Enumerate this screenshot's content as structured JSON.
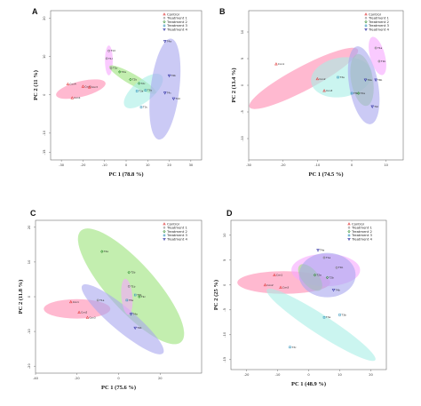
{
  "colors": {
    "control": "#e03a3a",
    "treatment1": "#7a7a7a",
    "treatment2": "#2e8b2e",
    "treatment3": "#2a8fb8",
    "treatment4": "#2a2aa0",
    "ellipse_control": "#ff8ab0",
    "ellipse_t1": "#f6a6ff",
    "ellipse_t2": "#9be27a",
    "ellipse_t3": "#a8efe6",
    "ellipse_t4": "#a9a6ef"
  },
  "legend": [
    "Control",
    "Treatment 1",
    "Treatment 2",
    "Treatment 3",
    "Treatment 4"
  ],
  "chart_data": [
    {
      "panel": "A",
      "type": "scatter",
      "xlabel": "PC 1 (78.8 %)",
      "ylabel": "PC 2 (11 %)",
      "xlim": [
        -35,
        35
      ],
      "ylim": [
        -17,
        22
      ],
      "xticks": [
        -30,
        -20,
        -10,
        0,
        10,
        20,
        30
      ],
      "yticks": [
        20,
        10,
        0,
        -10,
        -15
      ],
      "legend_position": "top-right",
      "ellipses": [
        {
          "group": "control",
          "cx": -21,
          "cy": 1.5,
          "rx": 8.5,
          "ry": 2.6,
          "angle": 14
        },
        {
          "group": "t1",
          "cx": -8,
          "cy": 9,
          "rx": 5,
          "ry": 1.3,
          "angle": 90
        },
        {
          "group": "t2",
          "cx": 3,
          "cy": 4,
          "rx": 9,
          "ry": 1.8,
          "angle": -30
        },
        {
          "group": "t3",
          "cx": 8,
          "cy": 1,
          "rx": 8,
          "ry": 3.5,
          "angle": 40
        },
        {
          "group": "t4",
          "cx": 18,
          "cy": 1.5,
          "rx": 17,
          "ry": 4.8,
          "angle": 83
        }
      ],
      "points": [
        {
          "group": "control",
          "x": -27,
          "y": 2.8,
          "label": "Con4"
        },
        {
          "group": "control",
          "x": -25,
          "y": -0.8,
          "label": "Con1"
        },
        {
          "group": "control",
          "x": -20,
          "y": 2.2,
          "label": "Con2"
        },
        {
          "group": "control",
          "x": -17,
          "y": 2.0,
          "label": "Con3"
        },
        {
          "group": "t1",
          "x": -8,
          "y": 11.5,
          "label": "T1d"
        },
        {
          "group": "t1",
          "x": -9,
          "y": 9.5,
          "label": "T1c"
        },
        {
          "group": "t1",
          "x": -7,
          "y": 7,
          "label": "T1b"
        },
        {
          "group": "t2",
          "x": -3,
          "y": 6,
          "label": "T2a"
        },
        {
          "group": "t2",
          "x": 2,
          "y": 4,
          "label": "T2b"
        },
        {
          "group": "t2",
          "x": 6,
          "y": 3,
          "label": "T2c"
        },
        {
          "group": "t3",
          "x": 5,
          "y": 1,
          "label": "T3a"
        },
        {
          "group": "t3",
          "x": 9,
          "y": 1.2,
          "label": "T3b"
        },
        {
          "group": "t3",
          "x": 7,
          "y": -3.2,
          "label": "T3c"
        },
        {
          "group": "t4",
          "x": 18,
          "y": 14,
          "label": "T4a"
        },
        {
          "group": "t4",
          "x": 20,
          "y": 5,
          "label": "T4b"
        },
        {
          "group": "t4",
          "x": 18,
          "y": 0.5,
          "label": "T4c"
        },
        {
          "group": "t4",
          "x": 22,
          "y": -1,
          "label": "T4d"
        }
      ]
    },
    {
      "panel": "B",
      "type": "scatter",
      "xlabel": "PC 1 (74.5 %)",
      "ylabel": "PC 2 (13.4 %)",
      "xlim": [
        -30,
        15
      ],
      "ylim": [
        -14,
        14
      ],
      "xticks": [
        -30,
        -20,
        -10,
        0,
        10
      ],
      "yticks": [
        10,
        5,
        0,
        -5,
        -10
      ],
      "legend_position": "top-right",
      "ellipses": [
        {
          "group": "control",
          "cx": -14,
          "cy": 1.3,
          "rx": 14,
          "ry": 2.7,
          "angle": 28
        },
        {
          "group": "t3",
          "cx": -3,
          "cy": 1.5,
          "rx": 7,
          "ry": 4.5,
          "angle": 10
        },
        {
          "group": "t2",
          "cx": 3,
          "cy": 1,
          "rx": 6,
          "ry": 2.5,
          "angle": 100
        },
        {
          "group": "t4",
          "cx": 3.5,
          "cy": 0,
          "rx": 9,
          "ry": 3.3,
          "angle": 100
        },
        {
          "group": "t1",
          "cx": 7.5,
          "cy": 5.5,
          "rx": 4.5,
          "ry": 1.7,
          "angle": 105
        }
      ],
      "points": [
        {
          "group": "control",
          "x": -22,
          "y": 4,
          "label": "Con1"
        },
        {
          "group": "control",
          "x": -10,
          "y": 1.2,
          "label": "Con2"
        },
        {
          "group": "control",
          "x": -8,
          "y": -1,
          "label": "Con3"
        },
        {
          "group": "t3",
          "x": -4,
          "y": 1.5,
          "label": "T3a"
        },
        {
          "group": "t3",
          "x": 0,
          "y": -1.5,
          "label": "T3b"
        },
        {
          "group": "t2",
          "x": 2,
          "y": -1.5,
          "label": "T2a"
        },
        {
          "group": "t4",
          "x": 4,
          "y": 1,
          "label": "T4a"
        },
        {
          "group": "t4",
          "x": 7,
          "y": 1,
          "label": "T4b"
        },
        {
          "group": "t4",
          "x": 6,
          "y": -4,
          "label": "T4c"
        },
        {
          "group": "t1",
          "x": 7,
          "y": 7,
          "label": "T1a"
        },
        {
          "group": "t1",
          "x": 8,
          "y": 4.5,
          "label": "T1b"
        }
      ]
    },
    {
      "panel": "C",
      "type": "scatter",
      "xlabel": "PC 1 (75.6 %)",
      "ylabel": "PC 2 (11.8 %)",
      "xlim": [
        -40,
        40
      ],
      "ylim": [
        -22,
        22
      ],
      "xticks": [
        -40,
        -20,
        0,
        20
      ],
      "yticks": [
        20,
        10,
        0,
        -10,
        -20
      ],
      "legend_position": "top-right",
      "ellipses": [
        {
          "group": "t2",
          "cx": 6,
          "cy": 3,
          "rx": 27,
          "ry": 8.5,
          "angle": -48
        },
        {
          "group": "control",
          "cx": -20,
          "cy": -3.5,
          "rx": 12,
          "ry": 3.5,
          "angle": 0
        },
        {
          "group": "t4",
          "cx": 2,
          "cy": -6.5,
          "rx": 19,
          "ry": 4.2,
          "angle": -40
        },
        {
          "group": "t1",
          "cx": 4,
          "cy": 0,
          "rx": 6.5,
          "ry": 2,
          "angle": 95
        }
      ],
      "points": [
        {
          "group": "control",
          "x": -23,
          "y": -1.5,
          "label": "Con1"
        },
        {
          "group": "control",
          "x": -19,
          "y": -4.5,
          "label": "Con2"
        },
        {
          "group": "control",
          "x": -15,
          "y": -6,
          "label": "Con3"
        },
        {
          "group": "t1",
          "x": -10,
          "y": -1,
          "label": "T1a"
        },
        {
          "group": "t1",
          "x": 5,
          "y": 3,
          "label": "T1b"
        },
        {
          "group": "t2",
          "x": -8,
          "y": 13,
          "label": "T2a"
        },
        {
          "group": "t2",
          "x": 5,
          "y": 7,
          "label": "T2b"
        },
        {
          "group": "t2",
          "x": 10,
          "y": 0,
          "label": "T2c"
        },
        {
          "group": "t3",
          "x": 4,
          "y": -1,
          "label": "T3a"
        },
        {
          "group": "t3",
          "x": 8,
          "y": 0.5,
          "label": "T3b"
        },
        {
          "group": "t4",
          "x": 6,
          "y": -5,
          "label": "T4a"
        },
        {
          "group": "t4",
          "x": 8,
          "y": -9,
          "label": "T4b"
        }
      ]
    },
    {
      "panel": "D",
      "type": "scatter",
      "xlabel": "PC 1 (48.9 %)",
      "ylabel": "PC 2 (25 %)",
      "xlim": [
        -25,
        25
      ],
      "ylim": [
        -17,
        13
      ],
      "xticks": [
        -20,
        -10,
        0,
        10,
        20
      ],
      "yticks": [
        10,
        5,
        0,
        -5,
        -10,
        -15
      ],
      "legend_position": "top-right",
      "ellipses": [
        {
          "group": "control",
          "cx": -8,
          "cy": 0.5,
          "rx": 11.5,
          "ry": 2.8,
          "angle": 0
        },
        {
          "group": "t1",
          "cx": 5.5,
          "cy": 3,
          "rx": 8.5,
          "ry": 4,
          "angle": 0
        },
        {
          "group": "t2",
          "cx": 0.5,
          "cy": 1.5,
          "rx": 4,
          "ry": 2,
          "angle": -50
        },
        {
          "group": "t4",
          "cx": 6,
          "cy": 2,
          "rx": 7,
          "ry": 5.5,
          "angle": 0
        },
        {
          "group": "t3",
          "cx": 4,
          "cy": -8,
          "rx": 16,
          "ry": 2.4,
          "angle": -33
        }
      ],
      "points": [
        {
          "group": "control",
          "x": -11,
          "y": 2,
          "label": "Con1"
        },
        {
          "group": "control",
          "x": -14,
          "y": 0,
          "label": "Con2"
        },
        {
          "group": "control",
          "x": -9,
          "y": -0.5,
          "label": "Con3"
        },
        {
          "group": "t1",
          "x": 5,
          "y": 5.5,
          "label": "T1a"
        },
        {
          "group": "t1",
          "x": 9,
          "y": 3.5,
          "label": "T1b"
        },
        {
          "group": "t2",
          "x": 2,
          "y": 2,
          "label": "T2a"
        },
        {
          "group": "t2",
          "x": 6,
          "y": 1.5,
          "label": "T2b"
        },
        {
          "group": "t4",
          "x": 3,
          "y": 7,
          "label": "T4a"
        },
        {
          "group": "t4",
          "x": 8,
          "y": -1,
          "label": "T4b"
        },
        {
          "group": "t3",
          "x": 5,
          "y": -6.5,
          "label": "T3a"
        },
        {
          "group": "t3",
          "x": 10,
          "y": -6,
          "label": "T3b"
        },
        {
          "group": "t3",
          "x": -6,
          "y": -12.5,
          "label": "T3c"
        }
      ]
    }
  ]
}
